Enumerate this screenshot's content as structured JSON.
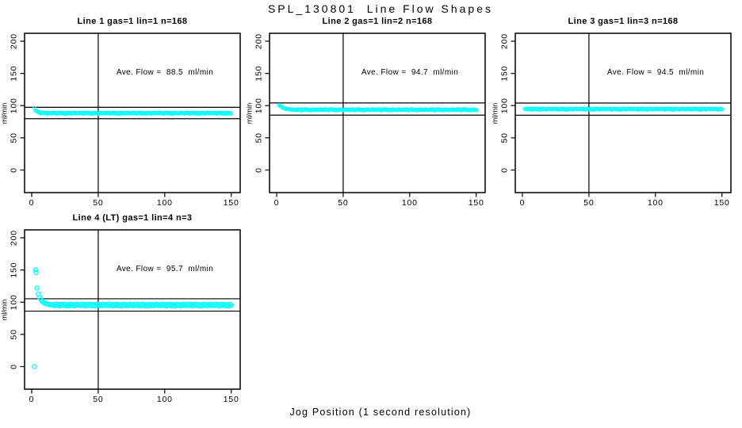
{
  "figure": {
    "title": "SPL_130801  Line Flow Shapes",
    "xlabel": "Jog Position (1 second resolution)",
    "ylabel": "ml/min",
    "point_color": "#00ffff",
    "axis_color": "#000000",
    "background": "#ffffff"
  },
  "chart_data": [
    {
      "type": "scatter",
      "title": "Line 1 gas=1 lin=1 n=168",
      "annotation": "Ave. Flow =  88.5  ml/min",
      "avg_flow_ml_min": 88.5,
      "x_ticks": [
        0,
        50,
        100,
        150
      ],
      "y_ticks": [
        0,
        50,
        100,
        150,
        200
      ],
      "xlim": [
        -5,
        157
      ],
      "ylim": [
        -35,
        212
      ],
      "vline_x": 50,
      "hlines": [
        97.4,
        79.7
      ],
      "x_start": 2,
      "x_end": 150,
      "x_step": 1,
      "point_radius": 1.9,
      "extra_points": [],
      "ys": [
        96.1,
        92.0,
        91.6,
        89.4,
        89.7,
        87.8,
        88.8,
        89.4,
        87.9,
        88.8,
        87.5,
        88.4,
        88.5,
        87.7,
        89.1,
        88.0,
        88.9,
        87.3,
        88.3,
        89.2,
        87.8,
        88.8,
        87.4,
        88.4,
        87.2,
        89.0,
        88.1,
        88.6,
        87.5,
        88.2,
        89.1,
        87.9,
        88.5,
        87.7,
        89.1,
        88.0,
        88.9,
        87.3,
        88.3,
        89.2,
        87.8,
        88.8,
        87.4,
        88.4,
        87.2,
        89.0,
        88.1,
        88.6,
        87.5,
        88.2,
        89.1,
        87.9,
        88.5,
        87.7,
        89.1,
        88.0,
        88.9,
        87.3,
        88.3,
        89.2,
        87.8,
        88.8,
        87.4,
        88.4,
        87.2,
        89.0,
        88.1,
        88.6,
        87.5,
        88.2,
        89.1,
        87.9
      ],
      "ys_note": "flat band ~88.2 ml/min; last 20 values repeat cyclically to x_end"
    },
    {
      "type": "scatter",
      "title": "Line 2 gas=1 lin=2 n=168",
      "annotation": "Ave. Flow =  94.7  ml/min",
      "avg_flow_ml_min": 94.7,
      "x_ticks": [
        0,
        50,
        100,
        150
      ],
      "y_ticks": [
        0,
        50,
        100,
        150,
        200
      ],
      "xlim": [
        -5,
        157
      ],
      "ylim": [
        -35,
        212
      ],
      "vline_x": 50,
      "hlines": [
        104.2,
        85.2
      ],
      "x_start": 2,
      "x_end": 150,
      "x_step": 1,
      "point_radius": 1.9,
      "extra_points": [],
      "ys": [
        100.8,
        99.0,
        97.6,
        96.3,
        95.6,
        94.6,
        94.8,
        94.3,
        94.5,
        93.6,
        94.1,
        93.4,
        93.8,
        93.0,
        94.4,
        93.3,
        94.2,
        92.6,
        93.6,
        94.5,
        93.1,
        94.1,
        92.7,
        93.7,
        92.5,
        94.3,
        93.4,
        93.9,
        92.8,
        93.5,
        94.4,
        93.2,
        93.8,
        93.0,
        94.4,
        93.3,
        94.2,
        92.6,
        93.6,
        94.5,
        93.1,
        94.1,
        92.7,
        93.7,
        92.5,
        94.3,
        93.4,
        93.9,
        92.8,
        93.5,
        94.4,
        93.2,
        93.8,
        93.0,
        94.4,
        93.3,
        94.2,
        92.6,
        93.6,
        94.5,
        93.1,
        94.1,
        92.7,
        93.7,
        92.5,
        94.3,
        93.4,
        93.9,
        92.8,
        93.5,
        94.4,
        93.2
      ],
      "ys_note": "decays from ~101 to flat band ~93.5 ml/min; last 20 values repeat cyclically to x_end"
    },
    {
      "type": "scatter",
      "title": "Line 3 gas=1 lin=3 n=168",
      "annotation": "Ave. Flow =  94.5  ml/min",
      "avg_flow_ml_min": 94.5,
      "x_ticks": [
        0,
        50,
        100,
        150
      ],
      "y_ticks": [
        0,
        50,
        100,
        150,
        200
      ],
      "xlim": [
        -5,
        157
      ],
      "ylim": [
        -35,
        212
      ],
      "vline_x": 50,
      "hlines": [
        104.0,
        85.1
      ],
      "x_start": 2,
      "x_end": 150,
      "x_step": 1,
      "point_radius": 1.9,
      "extra_points": [],
      "ys": [
        94.8,
        94.0,
        95.4,
        94.3,
        95.2,
        93.6,
        94.6,
        95.5,
        94.1,
        95.1,
        93.7,
        94.7,
        93.5,
        95.3,
        94.4,
        94.9,
        93.8,
        94.5,
        95.4,
        94.2,
        94.8,
        94.0,
        95.4,
        94.3,
        95.2,
        93.6,
        94.6,
        95.5,
        94.1,
        95.1,
        93.7,
        94.7,
        93.5,
        95.3,
        94.4,
        94.9,
        93.8,
        94.5,
        95.4,
        94.2,
        94.8,
        94.0,
        95.4,
        94.3,
        95.2,
        93.6,
        94.6,
        95.5,
        94.1,
        95.1,
        93.7,
        94.7,
        93.5,
        95.3,
        94.4,
        94.9,
        93.8,
        94.5,
        95.4,
        94.2
      ],
      "ys_note": "flat band ~94.5 ml/min from start; last 20 values repeat cyclically to x_end"
    },
    {
      "type": "scatter",
      "title": "Line 4 (LT) gas=1 lin=4 n=3",
      "annotation": "Ave. Flow =  95.7  ml/min",
      "avg_flow_ml_min": 95.7,
      "x_ticks": [
        0,
        50,
        100,
        150
      ],
      "y_ticks": [
        0,
        50,
        100,
        150,
        200
      ],
      "xlim": [
        -5,
        157
      ],
      "ylim": [
        -35,
        212
      ],
      "vline_x": 50,
      "hlines": [
        105.3,
        86.1
      ],
      "x_start": 5,
      "x_end": 150,
      "x_step": 1,
      "point_radius": 2.6,
      "extra_points": [
        [
          2,
          0
        ],
        [
          3,
          150
        ],
        [
          3.4,
          146
        ],
        [
          4,
          122
        ]
      ],
      "ys": [
        113,
        107,
        103.5,
        101,
        99.5,
        98.5,
        97.5,
        97.0,
        96.5,
        96.2,
        96.0,
        96.0,
        94.6,
        97.1,
        95.0,
        96.6,
        94.2,
        95.6,
        97.0,
        94.8,
        96.4,
        94.3,
        95.8,
        94.0,
        96.8,
        95.2,
        96.2,
        94.4,
        95.5,
        96.9,
        94.9,
        96.0,
        94.6,
        97.1,
        95.0,
        96.6,
        94.2,
        95.6,
        97.0,
        94.8,
        96.4,
        94.3,
        95.8,
        94.0,
        96.8,
        95.2,
        96.2,
        94.4,
        95.5,
        96.9,
        94.9,
        96.0,
        94.6,
        97.1,
        95.0,
        96.6,
        94.2,
        95.6,
        97.0,
        94.8,
        96.4,
        94.3,
        95.8,
        94.0,
        96.8,
        95.2,
        96.2,
        94.4,
        95.5,
        96.9,
        94.9
      ],
      "ys_note": "outliers at 0/150/146/122 then decays to scattered band ~95.5 ml/min; last 20 values repeat cyclically to x_end"
    }
  ]
}
